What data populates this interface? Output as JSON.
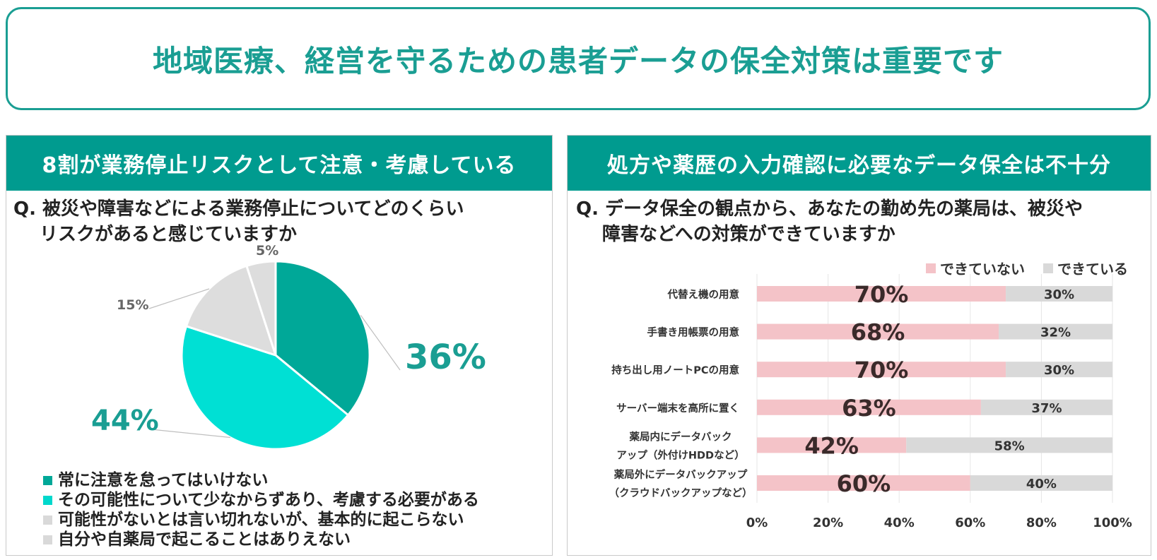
{
  "title": "地域医療、経営を守るための患者データの保全対策は重要です",
  "left": {
    "header": "8割が業務停止リスクとして注意・考慮している",
    "question_line1": "Q. 被災や障害などによる業務停止についてどのくらい",
    "question_line2": "リスクがあると感じていますか"
  },
  "right": {
    "header": "処方や薬歴の入力確認に必要なデータ保全は不十分",
    "question_line1": "Q. データ保全の観点から、あなたの勤め先の薬局は、被災や",
    "question_line2": "障害などへの対策ができていますか"
  },
  "chart_data": [
    {
      "type": "pie",
      "slices": [
        {
          "label": "常に注意を怠ってはいけない",
          "value": 36,
          "display": "36%",
          "color": "#00a898"
        },
        {
          "label": "その可能性について少なからずあり、考慮する必要がある",
          "value": 44,
          "display": "44%",
          "color": "#00e0d4"
        },
        {
          "label": "可能性がないとは言い切れないが、基本的に起こらない",
          "value": 15,
          "display": "15%",
          "color": "#dddddd"
        },
        {
          "label": "自分や自薬局で起こることはありえない",
          "value": 5,
          "display": "5%",
          "color": "#dddddd"
        }
      ],
      "legend_colors": [
        "#00a898",
        "#00d8cc",
        "#d9d9d9",
        "#d9d9d9"
      ],
      "legend_placement": "bottom-left"
    },
    {
      "type": "bar",
      "orientation": "horizontal",
      "stacked": true,
      "categories": [
        [
          "代替え機の用意"
        ],
        [
          "手書き用帳票の用意"
        ],
        [
          "持ち出し用ノートPCの用意"
        ],
        [
          "サーバー端末を高所に置く"
        ],
        [
          "薬局内にデータバック",
          "アップ（外付けHDDなど）"
        ],
        [
          "薬局外にデータバックアップ",
          "（クラウドバックアップなど）"
        ]
      ],
      "series": [
        {
          "name": "できていない",
          "values": [
            70,
            68,
            70,
            63,
            42,
            60
          ],
          "color": "#f4c3c8"
        },
        {
          "name": "できている",
          "values": [
            30,
            32,
            30,
            37,
            58,
            40
          ],
          "color": "#d9d9d9"
        }
      ],
      "xlim": [
        0,
        100
      ],
      "xticks": [
        "0%",
        "20%",
        "40%",
        "60%",
        "80%",
        "100%"
      ],
      "grid": true,
      "legend_placement": "top-right"
    }
  ]
}
